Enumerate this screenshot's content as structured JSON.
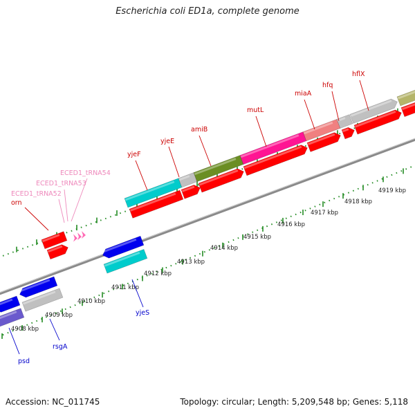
{
  "title": "Escherichia coli ED1a, complete genome",
  "footer": {
    "accession": "Accession: NC_011745",
    "summary": "Topology: circular; Length: 5,209,548 bp; Genes: 5,118"
  },
  "colors": {
    "red_gene": "#ff0000",
    "blue_gene": "#0000ee",
    "gray_gene": "#c0c0c0",
    "cyan_gene": "#00cccc",
    "olive_gene": "#6b8e23",
    "magenta_gene": "#ff1493",
    "salmon_gene": "#f08080",
    "khaki_gene": "#b5b56a",
    "slate_gene": "#6a5acd",
    "trna": "#ff69b4",
    "tick": "#228b22",
    "backbone": "#888888"
  },
  "kbp_labels": [
    "4908 kbp",
    "4909 kbp",
    "4910 kbp",
    "4911 kbp",
    "4912 kbp",
    "4913 kbp",
    "4914 kbp",
    "4915 kbp",
    "4916 kbp",
    "4917 kbp",
    "4918 kbp",
    "4919 kbp"
  ],
  "gene_labels_top": [
    {
      "name": "orn",
      "color": "#cc0000"
    },
    {
      "name": "ECED1_tRNA52",
      "color": "#ee88bb"
    },
    {
      "name": "ECED1_tRNA53",
      "color": "#ee88bb"
    },
    {
      "name": "ECED1_tRNA54",
      "color": "#ee88bb"
    },
    {
      "name": "yjeF",
      "color": "#cc0000"
    },
    {
      "name": "yjeE",
      "color": "#cc0000"
    },
    {
      "name": "amiB",
      "color": "#cc0000"
    },
    {
      "name": "mutL",
      "color": "#cc0000"
    },
    {
      "name": "miaA",
      "color": "#cc0000"
    },
    {
      "name": "hfq",
      "color": "#cc0000"
    },
    {
      "name": "hflX",
      "color": "#cc0000"
    }
  ],
  "gene_labels_bottom": [
    {
      "name": "yjeS",
      "color": "#0000cc"
    },
    {
      "name": "rsgA",
      "color": "#0000cc"
    },
    {
      "name": "psd",
      "color": "#0000cc"
    }
  ]
}
